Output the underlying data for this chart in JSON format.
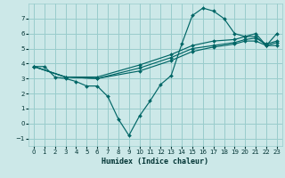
{
  "xlabel": "Humidex (Indice chaleur)",
  "bg_color": "#cce8e8",
  "grid_color": "#99cccc",
  "line_color": "#006666",
  "xlim": [
    -0.5,
    23.5
  ],
  "ylim": [
    -1.5,
    8.0
  ],
  "yticks": [
    -1,
    0,
    1,
    2,
    3,
    4,
    5,
    6,
    7
  ],
  "xticks": [
    0,
    1,
    2,
    3,
    4,
    5,
    6,
    7,
    8,
    9,
    10,
    11,
    12,
    13,
    14,
    15,
    16,
    17,
    18,
    19,
    20,
    21,
    22,
    23
  ],
  "series": [
    {
      "x": [
        0,
        1,
        2,
        3,
        4,
        5,
        6,
        7,
        8,
        9,
        10,
        11,
        12,
        13,
        14,
        15,
        16,
        17,
        18,
        19,
        20,
        21,
        22,
        23
      ],
      "y": [
        3.8,
        3.8,
        3.1,
        3.0,
        2.8,
        2.5,
        2.5,
        1.8,
        0.3,
        -0.8,
        0.5,
        1.5,
        2.6,
        3.2,
        5.3,
        7.2,
        7.7,
        7.5,
        7.0,
        6.0,
        5.8,
        5.8,
        5.2,
        5.2
      ]
    },
    {
      "x": [
        0,
        3,
        6,
        10,
        13,
        15,
        17,
        19,
        20,
        21,
        22,
        23
      ],
      "y": [
        3.8,
        3.1,
        3.0,
        3.5,
        4.2,
        4.8,
        5.1,
        5.3,
        5.5,
        5.5,
        5.2,
        5.4
      ]
    },
    {
      "x": [
        0,
        3,
        6,
        10,
        13,
        15,
        17,
        19,
        20,
        21,
        22,
        23
      ],
      "y": [
        3.8,
        3.1,
        3.0,
        3.7,
        4.4,
        5.0,
        5.2,
        5.4,
        5.6,
        5.7,
        5.3,
        5.5
      ]
    },
    {
      "x": [
        0,
        3,
        6,
        10,
        13,
        15,
        17,
        19,
        20,
        21,
        22,
        23
      ],
      "y": [
        3.8,
        3.1,
        3.1,
        3.9,
        4.6,
        5.2,
        5.5,
        5.6,
        5.8,
        6.0,
        5.2,
        6.0
      ]
    }
  ]
}
